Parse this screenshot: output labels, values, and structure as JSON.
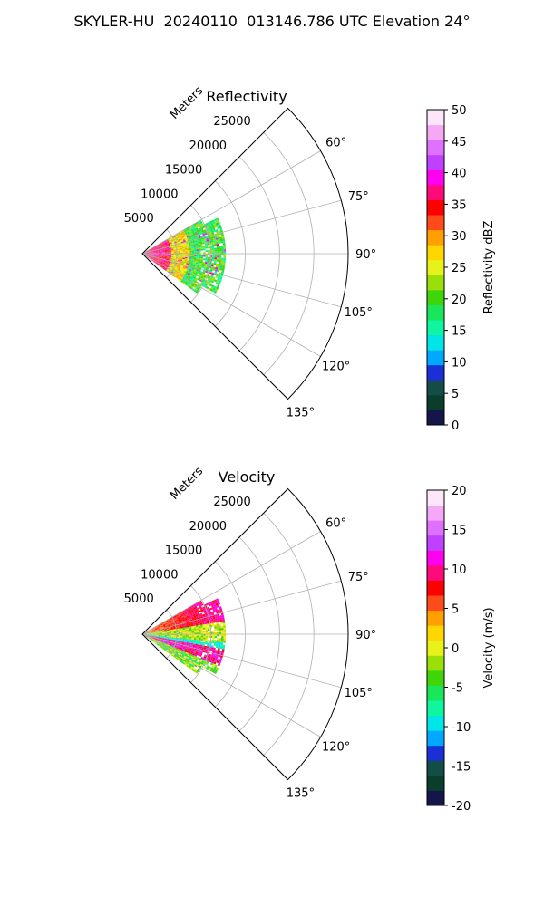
{
  "figure_title": "SKYLER-HU  20240110  013146.786 UTC Elevation 24°",
  "chart_data": [
    {
      "type": "polar sector (PPI)",
      "title": "Reflectivity",
      "range_axis_label": "Meters",
      "range_ticks": [
        5000,
        10000,
        15000,
        20000,
        25000
      ],
      "range_tick_labels": [
        "5000",
        "10000",
        "15000",
        "20000",
        "25000"
      ],
      "azimuth_ticks_deg": [
        60,
        75,
        90,
        105,
        120,
        135
      ],
      "azimuth_tick_labels": [
        "60°",
        "75°",
        "90°",
        "105°",
        "120°",
        "135°"
      ],
      "azimuth_range_deg": [
        45,
        135
      ],
      "range_max_m": 30000,
      "grid": true,
      "data_extent_m": 12000,
      "colorbar": {
        "label": "Reflectivity dBZ",
        "range": [
          0,
          50
        ],
        "ticks": [
          0,
          5,
          10,
          15,
          20,
          25,
          30,
          35,
          40,
          45,
          50
        ],
        "colors": [
          "#14164a",
          "#0a3d2a",
          "#134d45",
          "#1a2fd6",
          "#00a8ff",
          "#00e5e5",
          "#10f5a0",
          "#19e65a",
          "#40d40a",
          "#9adf0a",
          "#e6f21a",
          "#ffd700",
          "#ff9f00",
          "#ff4a1a",
          "#ff0000",
          "#ff0a7a",
          "#ff00f0",
          "#c040ff",
          "#e070ff",
          "#f5a8f5",
          "#fde6fa"
        ]
      }
    },
    {
      "type": "polar sector (PPI)",
      "title": "Velocity",
      "range_axis_label": "Meters",
      "range_ticks": [
        5000,
        10000,
        15000,
        20000,
        25000
      ],
      "range_tick_labels": [
        "5000",
        "10000",
        "15000",
        "20000",
        "25000"
      ],
      "azimuth_ticks_deg": [
        60,
        75,
        90,
        105,
        120,
        135
      ],
      "azimuth_tick_labels": [
        "60°",
        "75°",
        "90°",
        "105°",
        "120°",
        "135°"
      ],
      "azimuth_range_deg": [
        45,
        135
      ],
      "range_max_m": 30000,
      "grid": true,
      "data_extent_m": 12000,
      "colorbar": {
        "label": "Velocity (m/s)",
        "range": [
          -20,
          20
        ],
        "ticks": [
          -20,
          -15,
          -10,
          -5,
          0,
          5,
          10,
          15,
          20
        ],
        "colors": [
          "#14164a",
          "#0a3d2a",
          "#134d45",
          "#1a2fd6",
          "#00a8ff",
          "#00e5e5",
          "#10f5a0",
          "#19e65a",
          "#40d40a",
          "#9adf0a",
          "#e6f21a",
          "#ffd700",
          "#ff9f00",
          "#ff4a1a",
          "#ff0000",
          "#ff0a7a",
          "#ff00f0",
          "#c040ff",
          "#e070ff",
          "#f5a8f5",
          "#fde6fa"
        ]
      }
    }
  ]
}
